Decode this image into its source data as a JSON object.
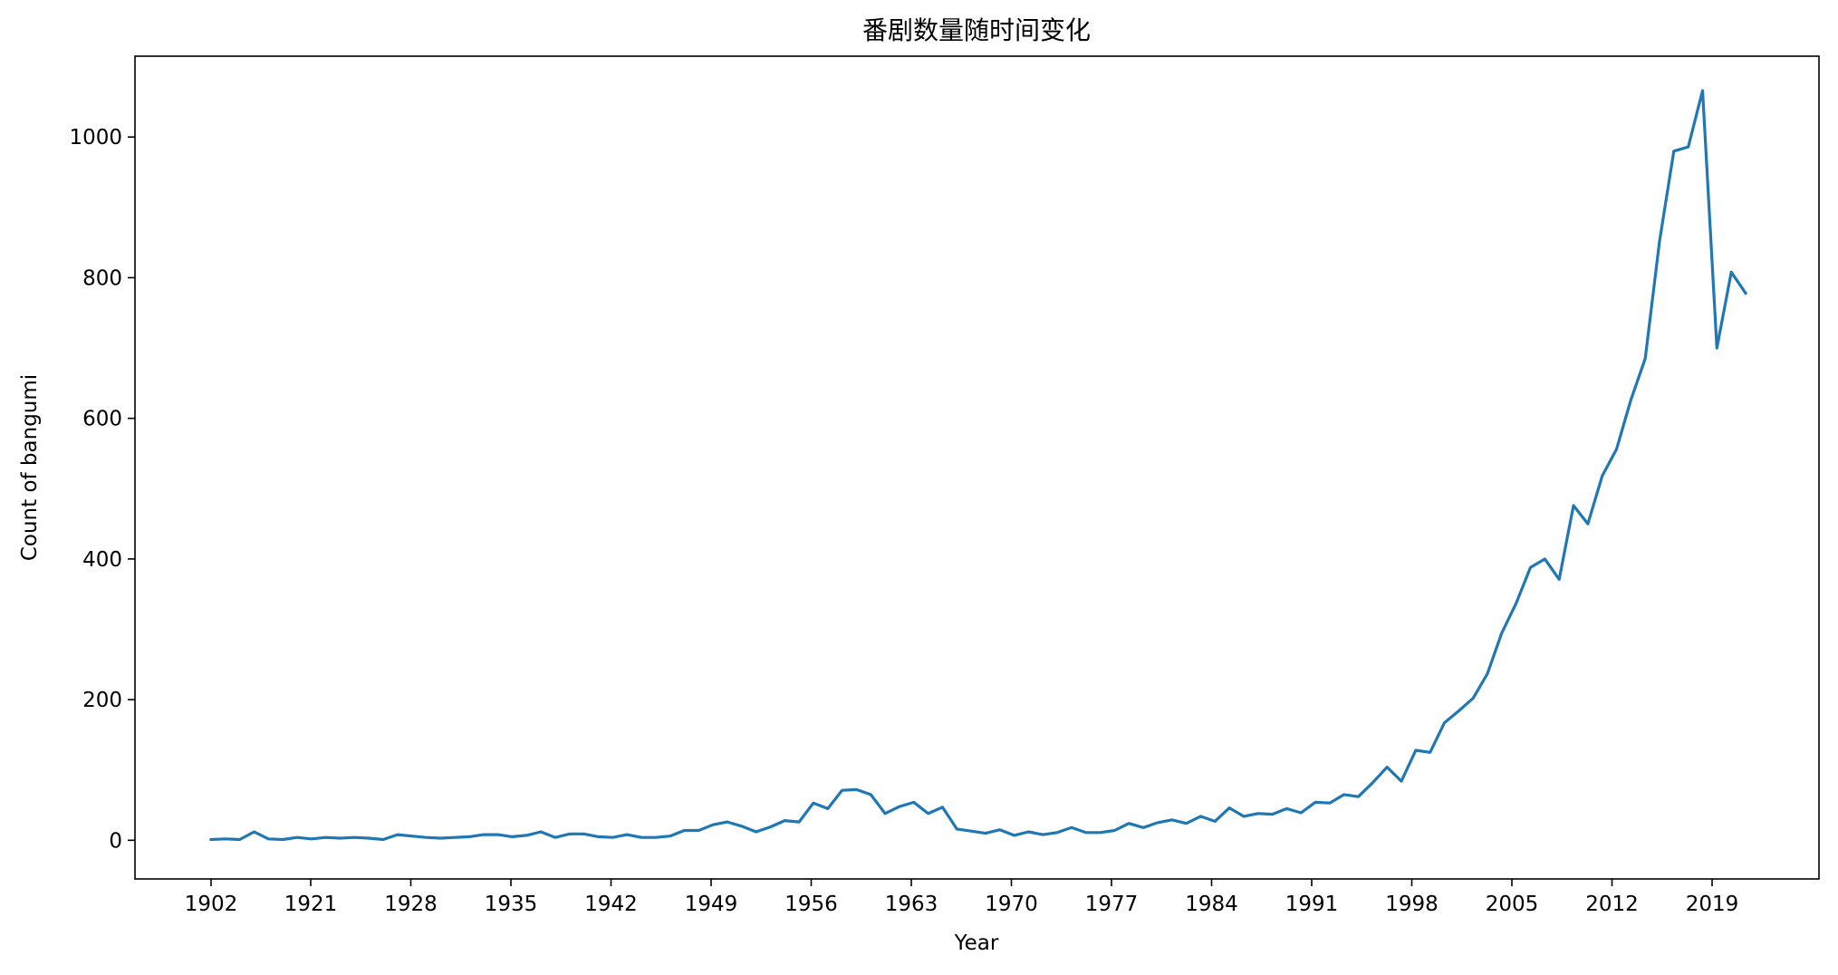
{
  "chart_data": {
    "type": "line",
    "title": "番剧数量随时间变化",
    "xlabel": "Year",
    "ylabel": "Count of bangumi",
    "grid": false,
    "legend": "none",
    "series_color": "#1f77b4",
    "x_tick_labels": [
      "1902",
      "1921",
      "1928",
      "1935",
      "1942",
      "1949",
      "1956",
      "1963",
      "1970",
      "1977",
      "1984",
      "1991",
      "1998",
      "2005",
      "2012",
      "2019"
    ],
    "y_ticks": [
      0,
      200,
      400,
      600,
      800,
      1000
    ],
    "y_tick_labels": [
      "0",
      "200",
      "400",
      "600",
      "800",
      "1000"
    ],
    "ylim": [
      -55,
      1115
    ],
    "series": [
      {
        "values": [
          1,
          2,
          1,
          12,
          2,
          1,
          4,
          2,
          4,
          3,
          4,
          3,
          1,
          8,
          6,
          4,
          3,
          4,
          5,
          8,
          8,
          5,
          7,
          12,
          4,
          9,
          9,
          5,
          4,
          8,
          4,
          4,
          6,
          14,
          14,
          22,
          26,
          20,
          12,
          19,
          28,
          26,
          53,
          45,
          71,
          72,
          65,
          38,
          48,
          54,
          38,
          47,
          16,
          13,
          10,
          15,
          7,
          12,
          8,
          11,
          18,
          11,
          11,
          14,
          24,
          18,
          25,
          29,
          24,
          34,
          27,
          46,
          34,
          38,
          37,
          45,
          39,
          54,
          53,
          65,
          62,
          82,
          104,
          84,
          128,
          125,
          167,
          184,
          202,
          237,
          295,
          337,
          388,
          400,
          371,
          476,
          450,
          518,
          556,
          626,
          685,
          852,
          980,
          986,
          1066,
          700,
          808,
          778
        ]
      }
    ]
  }
}
